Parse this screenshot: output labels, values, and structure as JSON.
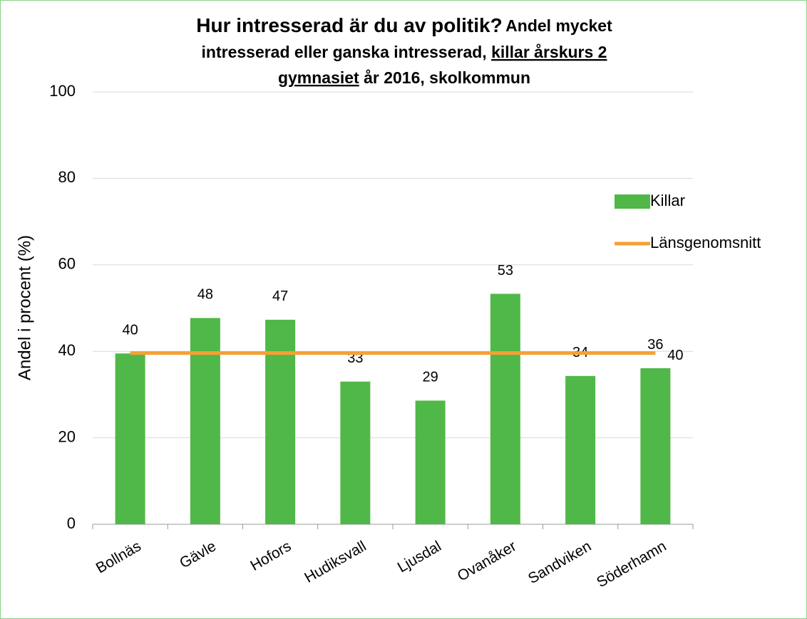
{
  "chart_data": {
    "type": "bar",
    "title": "Hur intresserad är du av politik?",
    "subtitle": [
      "Andel mycket",
      "intresserad eller ganska intresserad,",
      "killar årskurs 2",
      "gymnasiet",
      "år 2016, skolkommun"
    ],
    "y_label": "Andel i procent (%)",
    "categories": [
      "Bollnäs",
      "Gävle",
      "Hofors",
      "Hudiksvall",
      "Ljusdal",
      "Ovanåker",
      "Sandviken",
      "Söderhamn"
    ],
    "series": [
      {
        "name": "Killar",
        "type": "bar",
        "color": "#50b848",
        "values": [
          39.5,
          47.7,
          47.3,
          33,
          28.6,
          53.3,
          34.3,
          36.1
        ],
        "value_labels": [
          "40",
          "48",
          "47",
          "33",
          "29",
          "53",
          "34",
          "36"
        ]
      },
      {
        "name": "Länsgenomsnitt",
        "type": "line",
        "color": "#f7a035",
        "values": [
          39.6,
          39.6,
          39.6,
          39.6,
          39.6,
          39.6,
          39.6,
          39.6
        ],
        "value_labels": [
          null,
          null,
          null,
          null,
          null,
          null,
          null,
          "40"
        ]
      }
    ],
    "ylim": [
      0,
      100
    ],
    "yticks": [
      0,
      20,
      40,
      60,
      80,
      100
    ],
    "grid": true,
    "legend": "right"
  }
}
